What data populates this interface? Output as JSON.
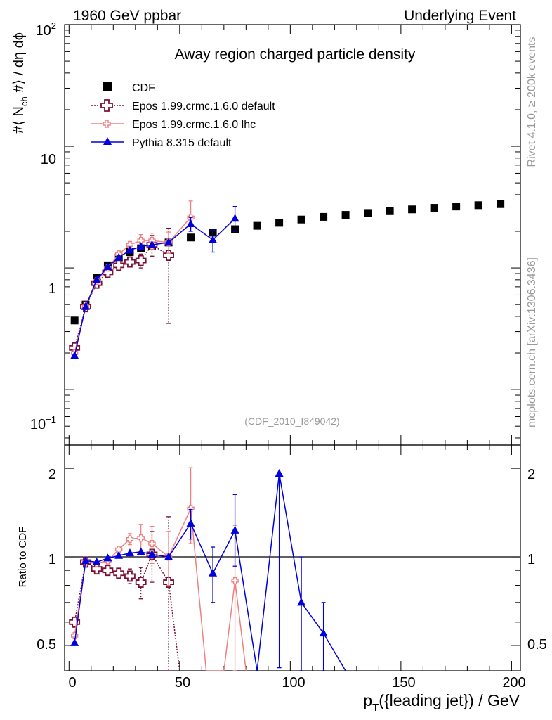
{
  "header": {
    "left": "1960 GeV ppbar",
    "right": "Underlying Event"
  },
  "side_text": {
    "rivet": "Rivet 4.1.0, ≥ 200k events",
    "mcplots": "mcplots.cern.ch [arXiv:1306.3436]"
  },
  "colors": {
    "cdf": "#000000",
    "epos_default": "#7a1034",
    "epos_lhc": "#f08080",
    "pythia": "#0000dd"
  },
  "chart_data": [
    {
      "type": "scatter",
      "panel": "main",
      "title": "Away region charged particle density",
      "watermark": "(CDF_2010_I849042)",
      "ylabel_parts": [
        "#⟨ N",
        "ch",
        " #⟩ / dη dϕ"
      ],
      "yscale": "log",
      "ylim": [
        0.035,
        100
      ],
      "xlim": [
        -2,
        204
      ],
      "ytick_labels": [
        {
          "value": 100,
          "base": "10",
          "exp": "2"
        },
        {
          "value": 10,
          "base": "10",
          "exp": ""
        },
        {
          "value": 1,
          "base": "1",
          "exp": ""
        },
        {
          "value": 0.1,
          "base": "10",
          "exp": "−1"
        }
      ],
      "legend_position": "top-left",
      "series": [
        {
          "name": "CDF",
          "key": "cdf",
          "marker": "square",
          "line": "none",
          "x": [
            2.5,
            7.5,
            12.5,
            17.5,
            22.5,
            27.5,
            32.5,
            37.5,
            45,
            55,
            65,
            75,
            85,
            95,
            105,
            115,
            125,
            135,
            145,
            155,
            165,
            175,
            185,
            195
          ],
          "y": [
            0.37,
            0.5,
            0.83,
            1.05,
            1.22,
            1.35,
            1.45,
            1.52,
            1.62,
            1.78,
            1.95,
            2.08,
            2.22,
            2.35,
            2.5,
            2.63,
            2.73,
            2.83,
            2.93,
            3.03,
            3.12,
            3.2,
            3.28,
            3.35
          ]
        },
        {
          "name": "Epos 1.99.crmc.1.6.0 default",
          "key": "epos_default",
          "marker": "open-cross",
          "line": "dotted",
          "x": [
            2.5,
            7.5,
            12.5,
            17.5,
            22.5,
            27.5,
            32.5,
            37.5,
            45
          ],
          "y": [
            0.22,
            0.48,
            0.75,
            0.92,
            1.05,
            1.12,
            1.15,
            1.55,
            1.27
          ],
          "err_low": [
            0,
            0,
            0,
            0,
            0,
            0.1,
            0.15,
            0.3,
            0.92
          ],
          "err_high": [
            0,
            0,
            0,
            0,
            0,
            0.1,
            0.15,
            0.3,
            0.85
          ]
        },
        {
          "name": "Epos 1.99.crmc.1.6.0 lhc",
          "key": "epos_lhc",
          "marker": "small-cross",
          "line": "solid",
          "x": [
            2.5,
            7.5,
            12.5,
            17.5,
            22.5,
            27.5,
            32.5,
            37.5,
            45,
            55
          ],
          "y": [
            0.2,
            0.48,
            0.78,
            1.0,
            1.3,
            1.55,
            1.68,
            1.68,
            1.62,
            2.6
          ],
          "err_low": [
            0,
            0,
            0,
            0,
            0,
            0.1,
            0.2,
            0.25,
            0.3,
            0.6
          ],
          "err_high": [
            0,
            0,
            0,
            0,
            0,
            0.1,
            0.2,
            0.25,
            0.35,
            0.95
          ]
        },
        {
          "name": "Pythia 8.315 default",
          "key": "pythia",
          "marker": "triangle",
          "line": "solid",
          "x": [
            2.5,
            7.5,
            12.5,
            17.5,
            22.5,
            27.5,
            32.5,
            37.5,
            45,
            55,
            65,
            75
          ],
          "y": [
            0.19,
            0.48,
            0.8,
            1.02,
            1.22,
            1.4,
            1.5,
            1.55,
            1.62,
            2.3,
            1.7,
            2.55
          ],
          "err_low": [
            0,
            0,
            0,
            0,
            0,
            0,
            0,
            0,
            0,
            0.3,
            0.35,
            0.55
          ],
          "err_high": [
            0,
            0,
            0,
            0,
            0,
            0,
            0,
            0,
            0,
            0.3,
            0.35,
            0.65
          ]
        }
      ]
    },
    {
      "type": "line",
      "panel": "ratio",
      "ylabel": "Ratio to CDF",
      "xlabel_parts": [
        "p",
        "T",
        "({leading jet}) / GeV"
      ],
      "yscale": "log",
      "ylim": [
        0.41,
        2.4
      ],
      "xlim": [
        -2,
        204
      ],
      "reference": 1,
      "ytick_labels": [
        {
          "value": 2,
          "label": "2"
        },
        {
          "value": 1,
          "label": "1"
        },
        {
          "value": 0.5,
          "label": "0.5"
        }
      ],
      "xtick_labels": [
        {
          "value": 0,
          "label": "0"
        },
        {
          "value": 50,
          "label": "50"
        },
        {
          "value": 100,
          "label": "100"
        },
        {
          "value": 150,
          "label": "150"
        },
        {
          "value": 200,
          "label": "200"
        }
      ],
      "series": [
        {
          "name": "Epos 1.99.crmc.1.6.0 default",
          "key": "epos_default",
          "marker": "open-cross",
          "line": "dotted",
          "x": [
            2.5,
            7.5,
            12.5,
            17.5,
            22.5,
            27.5,
            32.5,
            37.5,
            45,
            50
          ],
          "y": [
            0.6,
            0.96,
            0.91,
            0.9,
            0.88,
            0.86,
            0.82,
            1.02,
            0.82,
            0.3
          ],
          "err_low": [
            0,
            0,
            0,
            0,
            0,
            0.05,
            0.1,
            0.2,
            0.7,
            0
          ],
          "err_high": [
            0,
            0,
            0,
            0,
            0,
            0.05,
            0.1,
            0.2,
            0.55,
            0
          ]
        },
        {
          "name": "Epos 1.99.crmc.1.6.0 lhc",
          "key": "epos_lhc",
          "marker": "small-cross",
          "line": "solid",
          "x": [
            2.5,
            7.5,
            12.5,
            17.5,
            22.5,
            27.5,
            32.5,
            37.5,
            45,
            55,
            62,
            70,
            75,
            80
          ],
          "y": [
            0.54,
            0.96,
            0.95,
            0.97,
            1.06,
            1.15,
            1.16,
            1.11,
            1.0,
            1.46,
            0.3,
            0.3,
            0.83,
            0.3
          ],
          "err_low": [
            0,
            0,
            0,
            0,
            0,
            0.05,
            0.13,
            0.16,
            0.2,
            0.35,
            0,
            0,
            0.45,
            0
          ],
          "err_high": [
            0,
            0,
            0,
            0,
            0,
            0.05,
            0.13,
            0.16,
            0.22,
            0.55,
            0,
            0,
            0.45,
            0
          ]
        },
        {
          "name": "Pythia 8.315 default",
          "key": "pythia",
          "marker": "triangle",
          "line": "solid",
          "x": [
            2.5,
            7.5,
            12.5,
            17.5,
            22.5,
            27.5,
            32.5,
            37.5,
            45,
            55,
            65,
            75,
            85,
            95,
            105,
            115,
            125
          ],
          "y": [
            0.51,
            0.97,
            0.96,
            0.99,
            1.01,
            1.03,
            1.04,
            1.02,
            1.0,
            1.3,
            0.88,
            1.23,
            0.3,
            1.92,
            0.7,
            0.55,
            0.3
          ],
          "err_low": [
            0,
            0,
            0,
            0,
            0,
            0,
            0,
            0,
            0,
            0.15,
            0.18,
            0.3,
            0,
            1.5,
            0.3,
            0.15,
            0
          ],
          "err_high": [
            0,
            0,
            0,
            0,
            0,
            0,
            0,
            0,
            0,
            0.15,
            0.2,
            0.4,
            0,
            0.0,
            0.3,
            0.15,
            0
          ]
        }
      ]
    }
  ]
}
